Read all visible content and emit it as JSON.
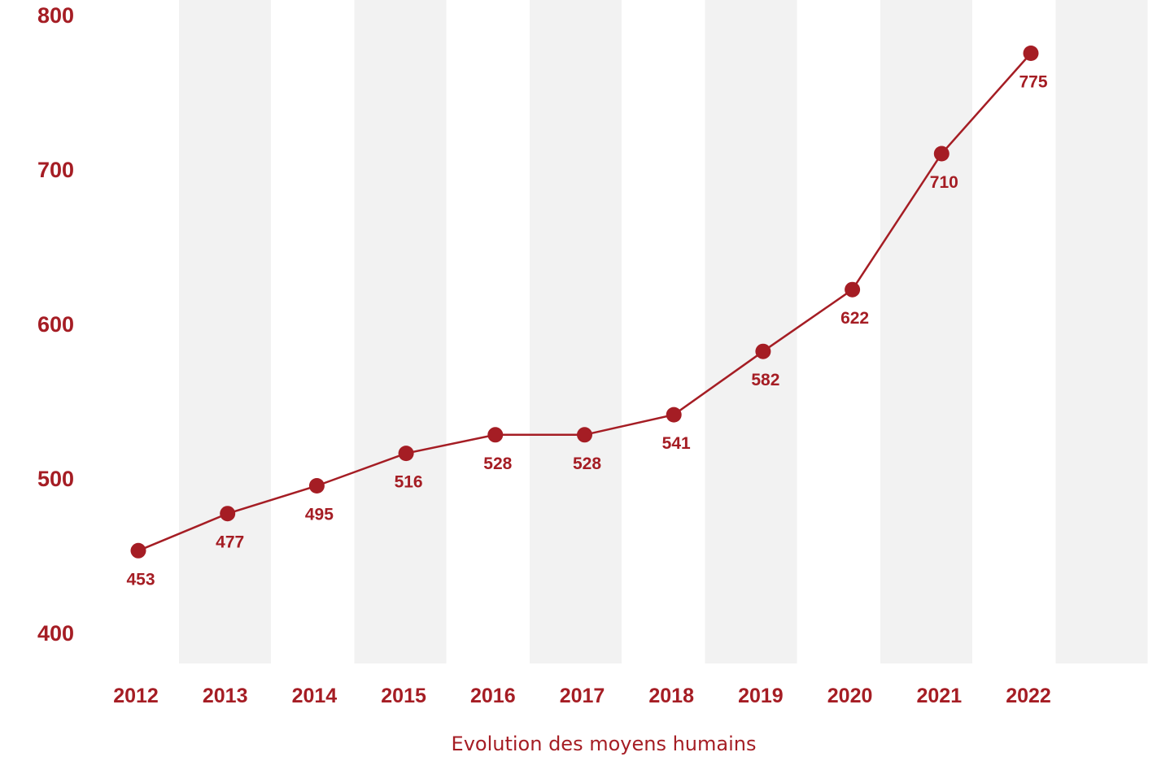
{
  "chart_data": {
    "type": "line",
    "title": "",
    "xlabel": "Evolution des moyens humains",
    "ylabel": "",
    "categories": [
      "2012",
      "2013",
      "2014",
      "2015",
      "2016",
      "2017",
      "2018",
      "2019",
      "2020",
      "2021",
      "2022"
    ],
    "series": [
      {
        "values": [
          453,
          477,
          495,
          516,
          528,
          528,
          541,
          582,
          622,
          710,
          775
        ],
        "data_labels": [
          "453",
          "477",
          "495",
          "516",
          "528",
          "528",
          "541",
          "582",
          "622",
          "710",
          "775"
        ]
      }
    ],
    "ylim": [
      400,
      800
    ],
    "yticks": [
      400,
      500,
      600,
      700,
      800
    ],
    "ytick_labels": [
      "400",
      "500",
      "600",
      "700",
      "800"
    ],
    "grid": false,
    "legend": "none",
    "alternating_column_bands": true,
    "colors": {
      "accent": "#a51d24",
      "band": "#f2f2f2",
      "axis_title": "#a51d24"
    }
  }
}
